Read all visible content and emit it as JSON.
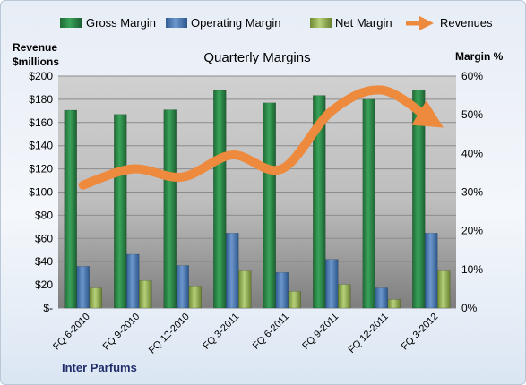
{
  "chart_data": {
    "type": "bar",
    "title": "Quarterly Margins",
    "left_axis_label_line1": "Revenue",
    "left_axis_label_line2": "$millions",
    "right_axis_label": "Margin %",
    "footer": "Inter Parfums",
    "categories": [
      "FQ 6-2010",
      "FQ 9-2010",
      "FQ 12-2010",
      "FQ 3-2011",
      "FQ 6-2011",
      "FQ 9-2011",
      "FQ 12-2011",
      "FQ 3-2012"
    ],
    "left_axis": {
      "min": 0,
      "max": 200,
      "step": 20,
      "tick_labels": [
        "$-",
        "$20",
        "$40",
        "$60",
        "$80",
        "$100",
        "$120",
        "$140",
        "$160",
        "$180",
        "$200"
      ]
    },
    "right_axis": {
      "min": 0,
      "max": 60,
      "step": 10,
      "tick_labels": [
        "0%",
        "10%",
        "20%",
        "30%",
        "40%",
        "50%",
        "60%"
      ]
    },
    "series": [
      {
        "name": "Gross Margin",
        "axis": "right",
        "kind": "bar",
        "color": "#2e8b4a",
        "values": [
          51.2,
          50.1,
          51.3,
          56.3,
          53.1,
          55.0,
          54.0,
          56.4
        ]
      },
      {
        "name": "Operating Margin",
        "axis": "right",
        "kind": "bar",
        "color": "#4f81bd",
        "values": [
          10.8,
          13.9,
          11.0,
          19.4,
          9.2,
          12.6,
          5.2,
          19.4
        ]
      },
      {
        "name": "Net Margin",
        "axis": "right",
        "kind": "bar",
        "color": "#9bbb59",
        "values": [
          5.2,
          7.1,
          5.7,
          9.6,
          4.3,
          6.1,
          2.2,
          9.6
        ]
      },
      {
        "name": "Revenues",
        "axis": "left",
        "kind": "line",
        "color": "#ed8a3d",
        "values": [
          106,
          120,
          113,
          132,
          120,
          170,
          188,
          162
        ]
      }
    ],
    "grid": true,
    "legend_position": "top"
  }
}
